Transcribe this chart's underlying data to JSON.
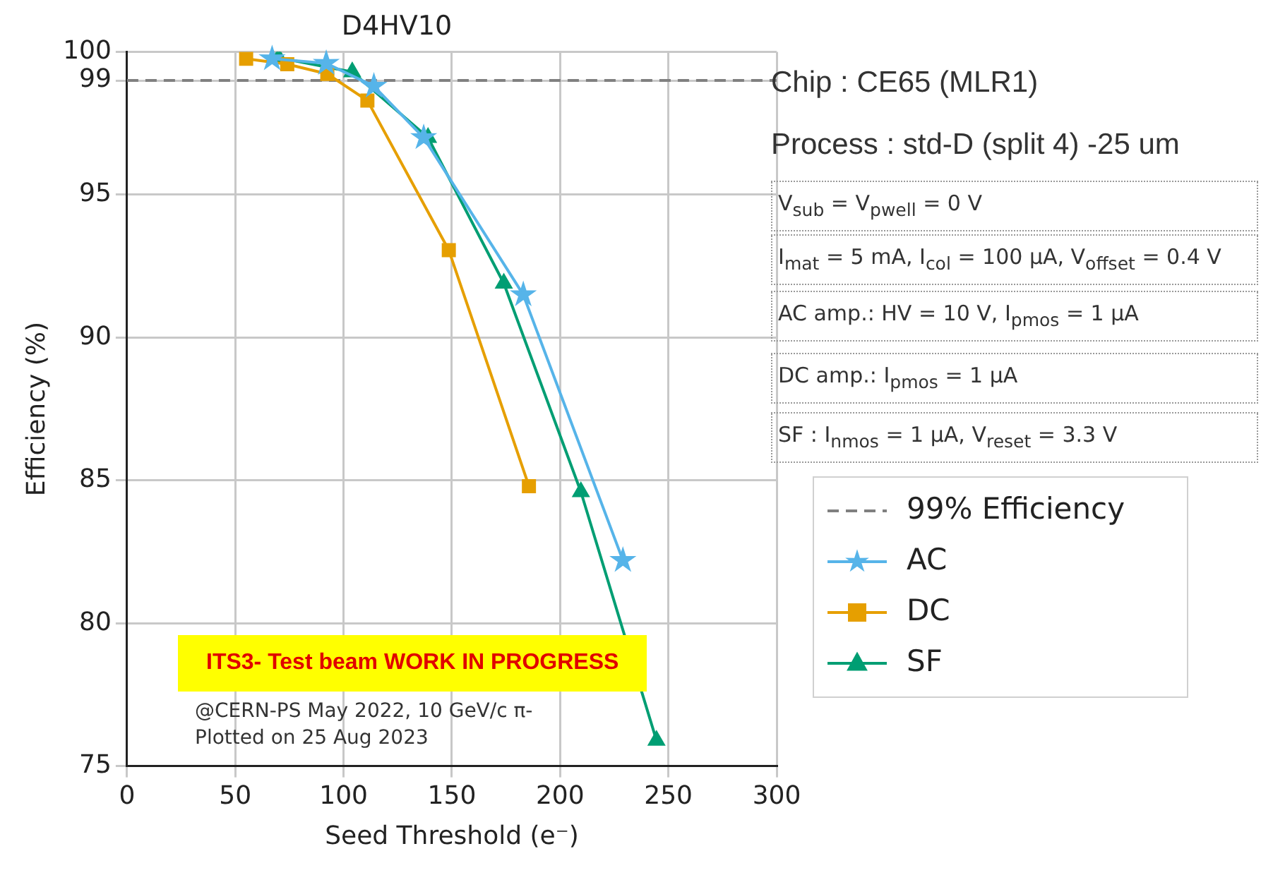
{
  "chart_data": {
    "type": "line",
    "title": "D4HV10",
    "xlabel": "Seed Threshold (e⁻)",
    "ylabel": "Efficiency (%)",
    "xlim": [
      0,
      300
    ],
    "xticks": [
      0,
      50,
      100,
      150,
      200,
      250,
      300
    ],
    "ylim": [
      75,
      100
    ],
    "yticks": [
      75,
      80,
      85,
      90,
      95,
      99,
      100
    ],
    "grid": true,
    "legend": "right",
    "series": [
      {
        "name": "AC",
        "color": "#56b4e9",
        "marker": "star",
        "x": [
          67,
          92,
          114,
          137,
          183,
          229
        ],
        "values": [
          99.76,
          99.6,
          98.8,
          97.0,
          91.5,
          82.2
        ]
      },
      {
        "name": "DC",
        "color": "#e69f00",
        "marker": "square",
        "x": [
          55,
          74,
          92.5,
          111,
          148.6,
          185.6
        ],
        "values": [
          99.76,
          99.57,
          99.23,
          98.3,
          93.06,
          84.8
        ]
      },
      {
        "name": "SF",
        "color": "#009e73",
        "marker": "triangle",
        "x": [
          70,
          104,
          139,
          174,
          209.6,
          244.5
        ],
        "values": [
          99.8,
          99.3,
          97.0,
          91.9,
          84.6,
          75.9
        ]
      }
    ],
    "ref_lines": [
      {
        "axis": "y",
        "value": 99,
        "label": "99% Efficiency",
        "color": "#808080",
        "line_style": "dashed"
      }
    ],
    "annotations": [
      "Chip : CE65 (MLR1)",
      "Process : std-D (split 4) -25 um",
      "V$_{sub}$ = V$_{pwell}$ = 0 V",
      "I$_{mat}$ = 5 mA, I$_{col}$ = 100 µA, V$_{offset}$ = 0.4 V",
      "AC amp.: HV = 10 V, I$_{pmos}$ = 1 µA",
      "DC amp.: I$_{pmos}$ = 1 µA",
      "SF : I$_{nmos}$ = 1 µA, V$_{reset}$ = 3.3 V",
      "ITS3- Test beam WORK IN PROGRESS",
      "@CERN-PS May 2022, 10 GeV/c π-",
      "Plotted on 25 Aug 2023"
    ]
  }
}
